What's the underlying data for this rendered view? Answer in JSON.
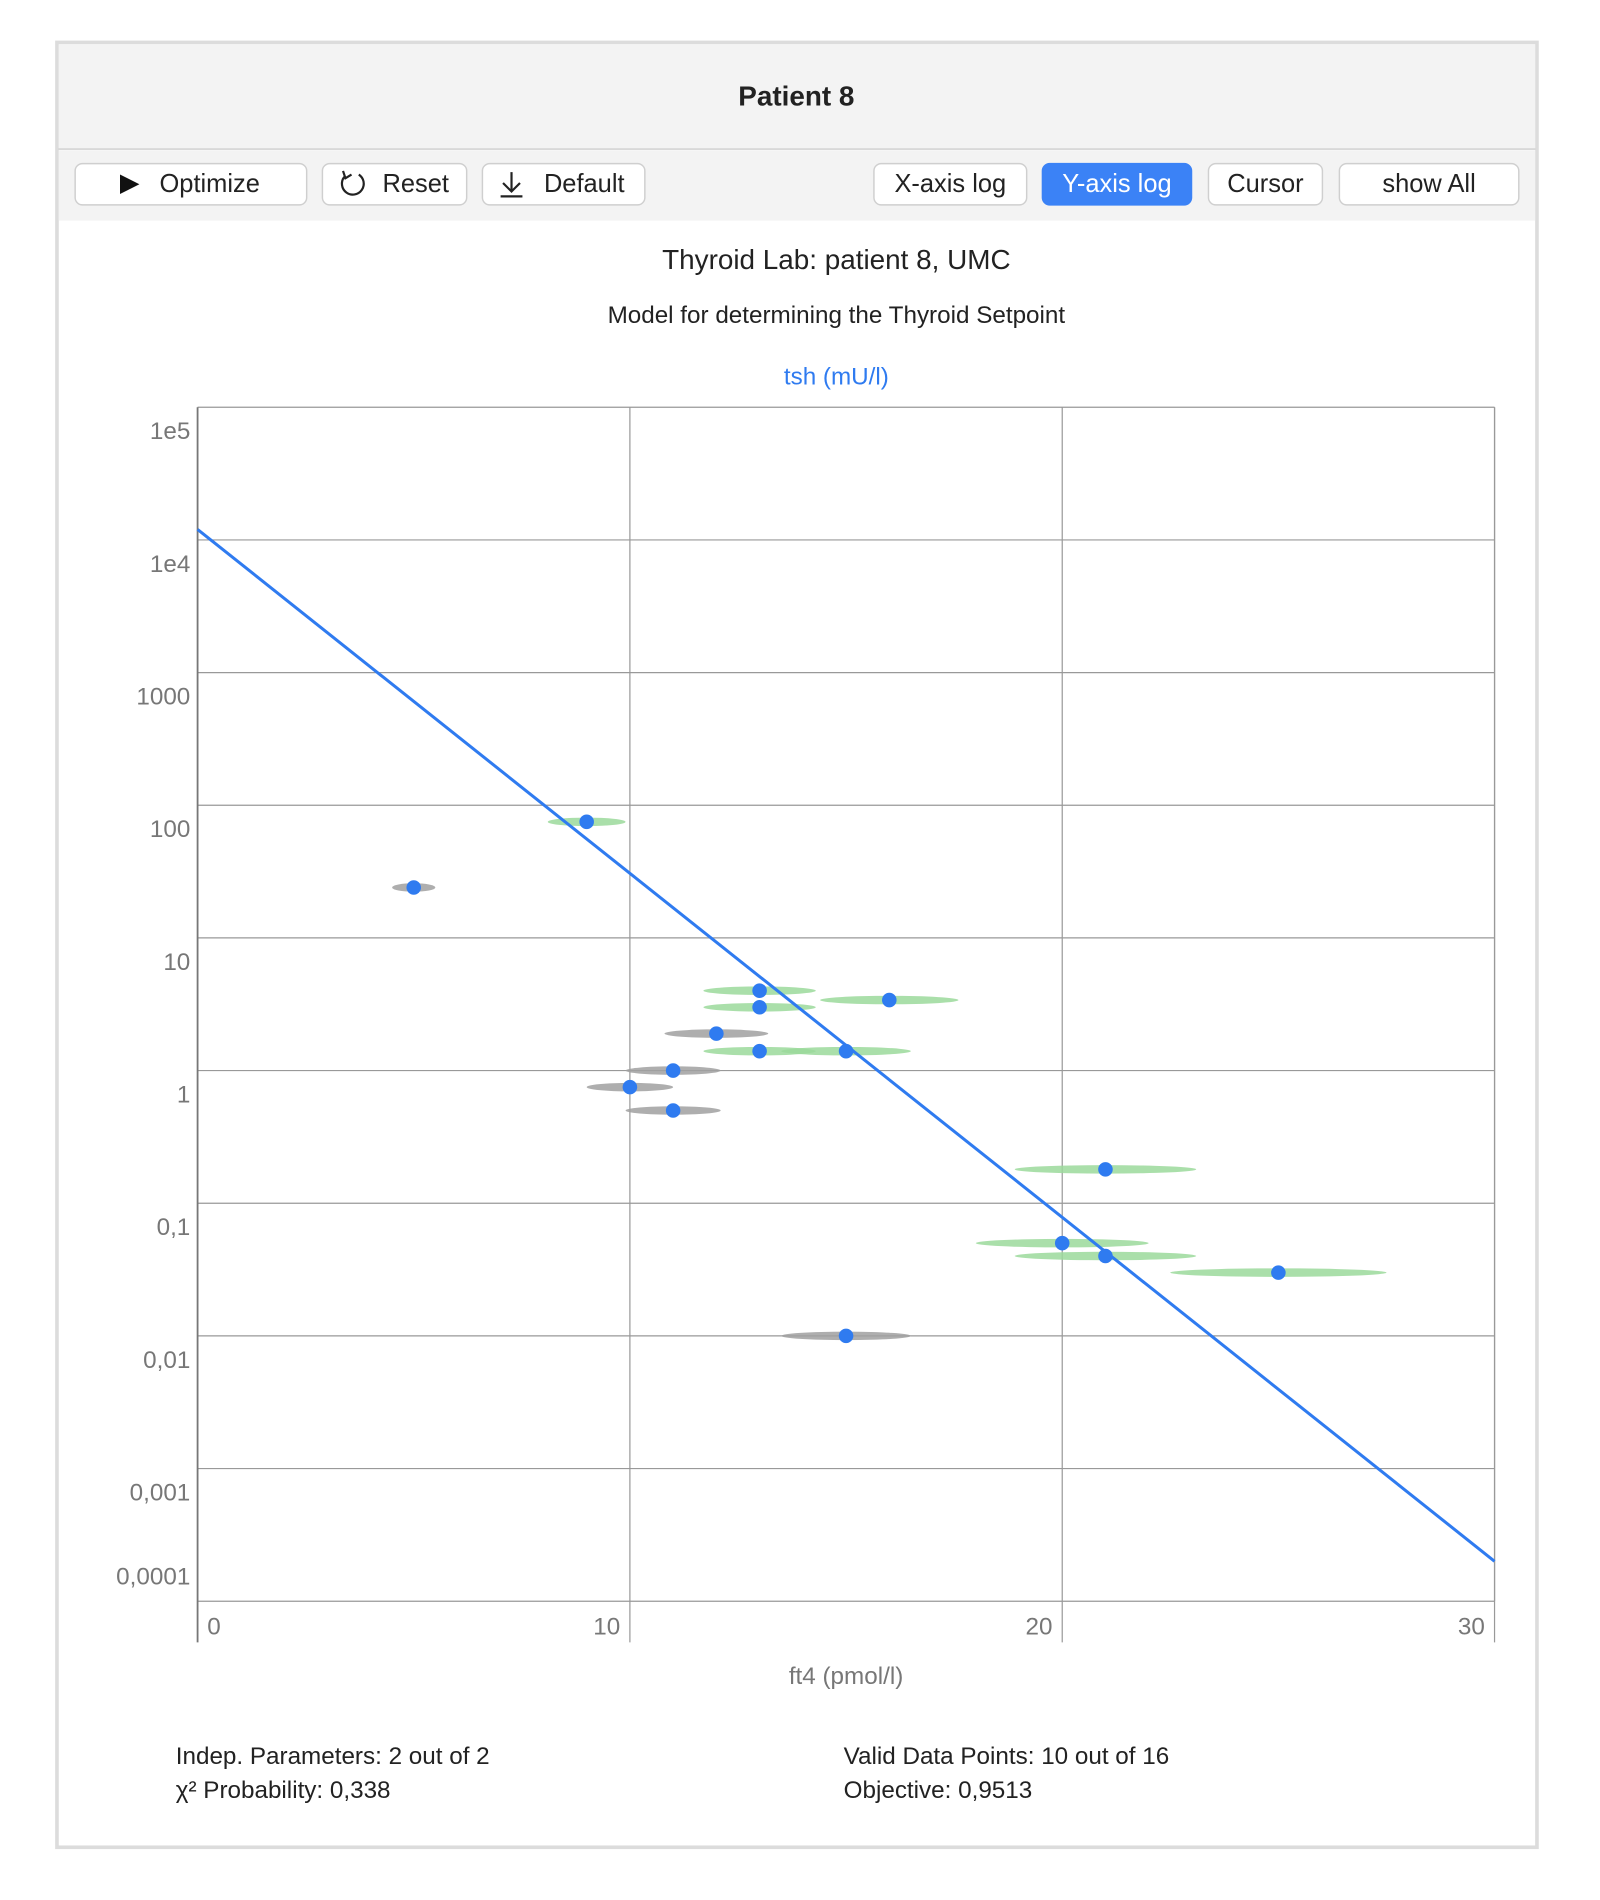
{
  "window_title": "Patient 8",
  "buttons": [
    {
      "label": "Optimize"
    },
    {
      "label": "Reset"
    },
    {
      "label": "Default"
    },
    {
      "label": "X-axis log"
    },
    {
      "label": "Y-axis log",
      "active": true
    },
    {
      "label": "Cursor"
    },
    {
      "label": "show All"
    }
  ],
  "chart_data": {
    "type": "scatter",
    "title": "Thyroid Lab: patient 8, UMC",
    "subtitle": "Model for determining the Thyroid Setpoint",
    "y_label": "tsh (mU/l)",
    "x_label": "ft4 (pmol/l)",
    "xlim": [
      0,
      30
    ],
    "xticks": [
      0,
      10,
      20,
      30
    ],
    "ylim": [
      0.0001,
      100000
    ],
    "log_y": true,
    "grid": true,
    "yticks": [
      {
        "value": 100000,
        "label": "1e5"
      },
      {
        "value": 10000,
        "label": "1e4"
      },
      1000,
      100,
      10,
      1,
      {
        "value": 0.1,
        "label": "0,1"
      },
      {
        "value": 0.01,
        "label": "0,01"
      },
      {
        "value": 0.001,
        "label": "0,001"
      },
      {
        "value": 0.0001,
        "label": "0,0001"
      }
    ],
    "series": [
      {
        "color": "#2f7bf0",
        "error_color": "#9bd99b",
        "x": [
          9.0,
          13.0,
          13.0,
          16.0,
          13.0,
          15.0,
          21.0,
          20.0,
          21.0,
          25.0
        ],
        "values": [
          75,
          4.0,
          3.0,
          3.4,
          1.4,
          1.4,
          0.18,
          0.05,
          0.04,
          0.03
        ],
        "xerr": [
          0.9,
          1.3,
          1.3,
          1.6,
          1.3,
          1.5,
          2.1,
          2.0,
          2.1,
          2.5
        ]
      },
      {
        "color": "#2f7bf0",
        "error_color": "#a0a0a0",
        "x": [
          5.0,
          12.0,
          11.0,
          10.0,
          11.0,
          15.0
        ],
        "values": [
          24,
          1.9,
          1.0,
          0.75,
          0.5,
          0.01
        ],
        "xerr": [
          0.5,
          1.2,
          1.1,
          1.0,
          1.1,
          1.5
        ]
      }
    ],
    "lines": [
      {
        "color": "#2f7bf0",
        "x": [
          0,
          30
        ],
        "values": [
          12000,
          0.0002
        ]
      }
    ]
  },
  "stats": [
    "Indep. Parameters: 2 out of 2",
    "χ² Probability: 0,338",
    "Valid Data Points: 10 out of 16",
    "Objective: 0,9513"
  ]
}
